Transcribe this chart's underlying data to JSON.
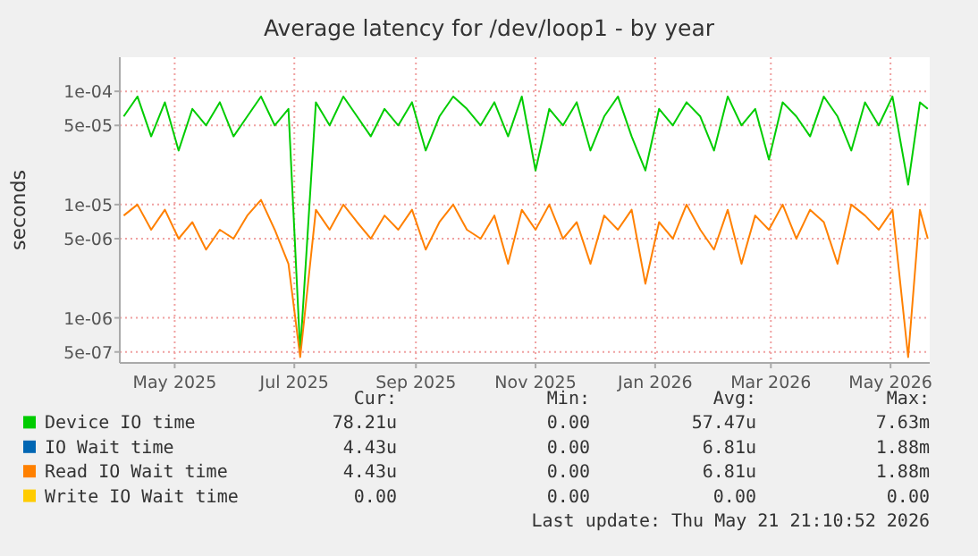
{
  "chart_data": {
    "type": "line",
    "title": "Average latency for /dev/loop1 - by year",
    "ylabel": "seconds",
    "log": "y",
    "grid": true,
    "legend": "bottom",
    "line_style": "solid",
    "xlim": [
      "2025-04-03",
      "2026-05-21"
    ],
    "xticks": [
      {
        "value": "2025-05-01",
        "label": "May 2025"
      },
      {
        "value": "2025-07-01",
        "label": "Jul 2025"
      },
      {
        "value": "2025-09-01",
        "label": "Sep 2025"
      },
      {
        "value": "2025-11-01",
        "label": "Nov 2025"
      },
      {
        "value": "2026-01-01",
        "label": "Jan 2026"
      },
      {
        "value": "2026-03-01",
        "label": "Mar 2026"
      },
      {
        "value": "2026-05-01",
        "label": "May 2026"
      }
    ],
    "ylim": [
      4e-07,
      0.0002
    ],
    "yticks": [
      {
        "value": 5e-07,
        "label": "5e-07"
      },
      {
        "value": 1e-06,
        "label": "1e-06"
      },
      {
        "value": 5e-06,
        "label": "5e-06"
      },
      {
        "value": 1e-05,
        "label": "1e-05"
      },
      {
        "value": 5e-05,
        "label": "5e-05"
      },
      {
        "value": 0.0001,
        "label": "1e-04"
      }
    ],
    "x": [
      "2025-04-05",
      "2025-04-12",
      "2025-04-19",
      "2025-04-26",
      "2025-05-03",
      "2025-05-10",
      "2025-05-17",
      "2025-05-24",
      "2025-05-31",
      "2025-06-07",
      "2025-06-14",
      "2025-06-21",
      "2025-06-28",
      "2025-07-04",
      "2025-07-12",
      "2025-07-19",
      "2025-07-26",
      "2025-08-02",
      "2025-08-09",
      "2025-08-16",
      "2025-08-23",
      "2025-08-30",
      "2025-09-06",
      "2025-09-13",
      "2025-09-20",
      "2025-09-27",
      "2025-10-04",
      "2025-10-11",
      "2025-10-18",
      "2025-10-25",
      "2025-11-01",
      "2025-11-08",
      "2025-11-15",
      "2025-11-22",
      "2025-11-29",
      "2025-12-06",
      "2025-12-13",
      "2025-12-20",
      "2025-12-27",
      "2026-01-03",
      "2026-01-10",
      "2026-01-17",
      "2026-01-24",
      "2026-01-31",
      "2026-02-07",
      "2026-02-14",
      "2026-02-21",
      "2026-02-28",
      "2026-03-07",
      "2026-03-14",
      "2026-03-21",
      "2026-03-28",
      "2026-04-04",
      "2026-04-11",
      "2026-04-18",
      "2026-04-25",
      "2026-05-02",
      "2026-05-10",
      "2026-05-16",
      "2026-05-20"
    ],
    "series": [
      {
        "name": "Device IO time",
        "color": "#00cc00",
        "values": [
          6e-05,
          9e-05,
          4e-05,
          8e-05,
          3e-05,
          7e-05,
          5e-05,
          8e-05,
          4e-05,
          6e-05,
          9e-05,
          5e-05,
          7e-05,
          5e-07,
          8e-05,
          5e-05,
          9e-05,
          6e-05,
          4e-05,
          7e-05,
          5e-05,
          8e-05,
          3e-05,
          6e-05,
          9e-05,
          7e-05,
          5e-05,
          8e-05,
          4e-05,
          9e-05,
          2e-05,
          7e-05,
          5e-05,
          8e-05,
          3e-05,
          6e-05,
          9e-05,
          4e-05,
          2e-05,
          7e-05,
          5e-05,
          8e-05,
          6e-05,
          3e-05,
          9e-05,
          5e-05,
          7e-05,
          2.5e-05,
          8e-05,
          6e-05,
          4e-05,
          9e-05,
          6e-05,
          3e-05,
          8e-05,
          5e-05,
          9e-05,
          1.5e-05,
          8e-05,
          7e-05
        ]
      },
      {
        "name": "IO Wait time",
        "color": "#0066b3",
        "values": [
          null,
          null,
          null,
          null,
          null,
          null,
          null,
          null,
          null,
          null,
          null,
          null,
          null,
          null,
          null,
          null,
          null,
          null,
          null,
          null,
          null,
          null,
          null,
          null,
          null,
          null,
          null,
          null,
          null,
          null,
          null,
          null,
          null,
          null,
          null,
          null,
          null,
          null,
          null,
          null,
          null,
          null,
          null,
          null,
          null,
          null,
          null,
          null,
          null,
          null,
          null,
          null,
          null,
          null,
          null,
          null,
          null,
          null,
          null,
          null
        ]
      },
      {
        "name": "Read IO Wait time",
        "color": "#ff8000",
        "values": [
          8e-06,
          1e-05,
          6e-06,
          9e-06,
          5e-06,
          7e-06,
          4e-06,
          6e-06,
          5e-06,
          8e-06,
          1.1e-05,
          6e-06,
          3e-06,
          4.5e-07,
          9e-06,
          6e-06,
          1e-05,
          7e-06,
          5e-06,
          8e-06,
          6e-06,
          9e-06,
          4e-06,
          7e-06,
          1e-05,
          6e-06,
          5e-06,
          8e-06,
          3e-06,
          9e-06,
          6e-06,
          1e-05,
          5e-06,
          7e-06,
          3e-06,
          8e-06,
          6e-06,
          9e-06,
          2e-06,
          7e-06,
          5e-06,
          1e-05,
          6e-06,
          4e-06,
          9e-06,
          3e-06,
          8e-06,
          6e-06,
          1e-05,
          5e-06,
          9e-06,
          7e-06,
          3e-06,
          1e-05,
          8e-06,
          6e-06,
          9e-06,
          4.5e-07,
          9e-06,
          5e-06
        ]
      },
      {
        "name": "Write IO Wait time",
        "color": "#ffcc00",
        "values": [
          null,
          null,
          null,
          null,
          null,
          null,
          null,
          null,
          null,
          null,
          null,
          null,
          null,
          null,
          null,
          null,
          null,
          null,
          null,
          null,
          null,
          null,
          null,
          null,
          null,
          null,
          null,
          null,
          null,
          null,
          null,
          null,
          null,
          null,
          null,
          null,
          null,
          null,
          null,
          null,
          null,
          null,
          null,
          null,
          null,
          null,
          null,
          null,
          null,
          null,
          null,
          null,
          null,
          null,
          null,
          null,
          null,
          null,
          null,
          null
        ]
      }
    ],
    "annotations": [
      "Cur:",
      "Min:",
      "Avg:",
      "Max:",
      "78.21u",
      "0.00",
      "57.47u",
      "7.63m",
      "4.43u",
      "0.00",
      "6.81u",
      "1.88m",
      "4.43u",
      "0.00",
      "6.81u",
      "1.88m",
      "0.00",
      "0.00",
      "0.00",
      "0.00",
      "Last update: Thu May 21 21:10:52 2026"
    ]
  }
}
